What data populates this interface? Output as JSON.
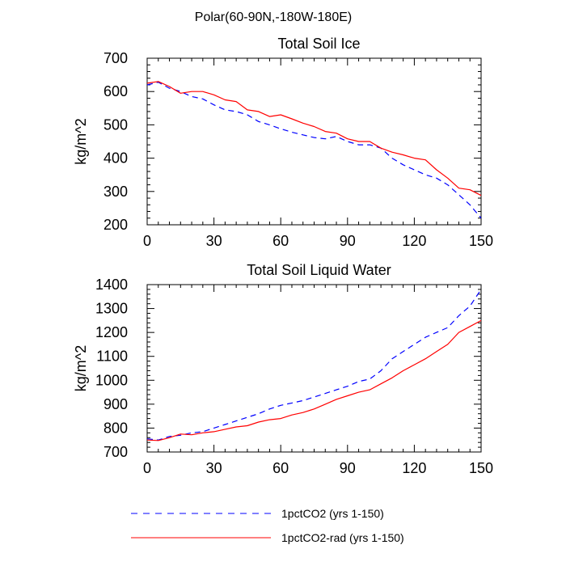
{
  "figure": {
    "suptitle": "Polar(60-90N,-180W-180E)"
  },
  "legend": {
    "placement": "bottom",
    "entries": [
      {
        "label": "1pctCO2 (yrs 1-150)",
        "color": "#0000ff",
        "dash": "dashed"
      },
      {
        "label": "1pctCO2-rad (yrs 1-150)",
        "color": "#ff0000",
        "dash": "solid"
      }
    ]
  },
  "chart_data": [
    {
      "type": "line",
      "title": "Total Soil Ice",
      "xlabel": "",
      "ylabel": "kg/m^2",
      "xlim": [
        0,
        150
      ],
      "ylim": [
        200,
        700
      ],
      "xticks": [
        0,
        30,
        60,
        90,
        120,
        150
      ],
      "yticks": [
        200,
        300,
        400,
        500,
        600,
        700
      ],
      "grid": false,
      "x": [
        0,
        5,
        10,
        15,
        20,
        25,
        30,
        35,
        40,
        45,
        50,
        55,
        60,
        65,
        70,
        75,
        80,
        85,
        90,
        95,
        100,
        105,
        110,
        115,
        120,
        125,
        130,
        135,
        140,
        145,
        150
      ],
      "series": [
        {
          "name": "1pctCO2 (yrs 1-150)",
          "color": "#0000ff",
          "dash": "dashed",
          "values": [
            620,
            628,
            610,
            600,
            585,
            578,
            560,
            545,
            540,
            530,
            510,
            500,
            488,
            478,
            470,
            462,
            458,
            465,
            450,
            440,
            440,
            430,
            400,
            380,
            365,
            350,
            340,
            320,
            290,
            260,
            220
          ]
        },
        {
          "name": "1pctCO2-rad (yrs 1-150)",
          "color": "#ff0000",
          "dash": "solid",
          "values": [
            625,
            630,
            615,
            595,
            600,
            600,
            590,
            575,
            570,
            545,
            540,
            525,
            530,
            518,
            505,
            495,
            480,
            475,
            458,
            450,
            450,
            430,
            418,
            410,
            400,
            395,
            365,
            340,
            310,
            305,
            288
          ]
        }
      ]
    },
    {
      "type": "line",
      "title": "Total Soil Liquid Water",
      "xlabel": "",
      "ylabel": "kg/m^2",
      "xlim": [
        0,
        150
      ],
      "ylim": [
        700,
        1400
      ],
      "xticks": [
        0,
        30,
        60,
        90,
        120,
        150
      ],
      "yticks": [
        700,
        800,
        900,
        1000,
        1100,
        1200,
        1300,
        1400
      ],
      "grid": false,
      "x": [
        0,
        5,
        10,
        15,
        20,
        25,
        30,
        35,
        40,
        45,
        50,
        55,
        60,
        65,
        70,
        75,
        80,
        85,
        90,
        95,
        100,
        105,
        110,
        115,
        120,
        125,
        130,
        135,
        140,
        145,
        150
      ],
      "series": [
        {
          "name": "1pctCO2 (yrs 1-150)",
          "color": "#0000ff",
          "dash": "dashed",
          "values": [
            755,
            750,
            765,
            770,
            780,
            785,
            800,
            815,
            830,
            845,
            860,
            880,
            895,
            905,
            915,
            930,
            945,
            960,
            975,
            995,
            1005,
            1040,
            1090,
            1120,
            1150,
            1180,
            1200,
            1220,
            1270,
            1310,
            1380
          ]
        },
        {
          "name": "1pctCO2-rad (yrs 1-150)",
          "color": "#ff0000",
          "dash": "solid",
          "values": [
            750,
            748,
            760,
            775,
            772,
            780,
            785,
            795,
            805,
            810,
            825,
            835,
            840,
            855,
            865,
            880,
            900,
            920,
            935,
            950,
            960,
            985,
            1010,
            1040,
            1065,
            1090,
            1120,
            1150,
            1200,
            1225,
            1250
          ]
        }
      ]
    }
  ]
}
